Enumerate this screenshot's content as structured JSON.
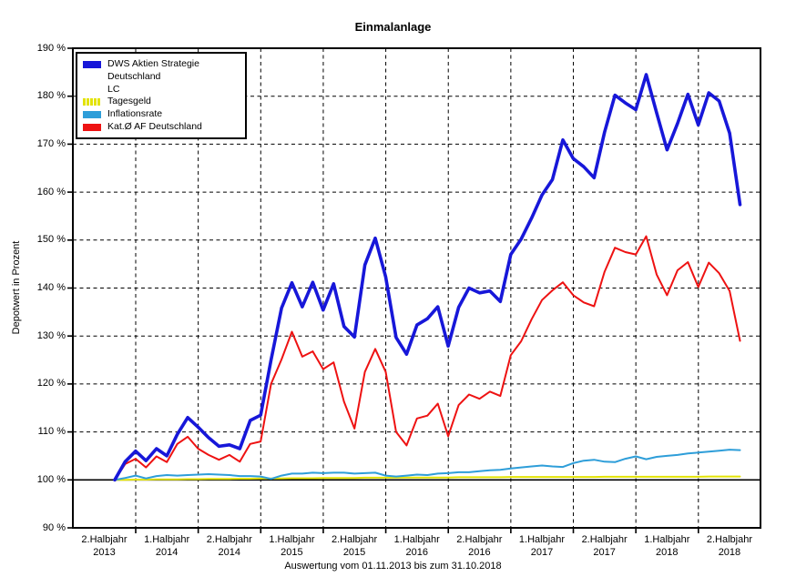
{
  "chart_data": {
    "type": "line",
    "title": "Einmalanlage",
    "ylabel": "Depotwert in Prozent",
    "footer": "Auswertung vom 01.11.2013 bis zum 31.10.2018",
    "ylim": [
      90,
      190
    ],
    "y_tick_step": 10,
    "grid": true,
    "baseline_value": 100,
    "legend_position": "top-left",
    "y_tick_labels": [
      "90 %",
      "100 %",
      "110 %",
      "120 %",
      "130 %",
      "140 %",
      "150 %",
      "160 %",
      "170 %",
      "180 %",
      "190 %"
    ],
    "x_tick_labels": [
      {
        "line1": "2.Halbjahr",
        "line2": "2013"
      },
      {
        "line1": "1.Halbjahr",
        "line2": "2014"
      },
      {
        "line1": "2.Halbjahr",
        "line2": "2014"
      },
      {
        "line1": "1.Halbjahr",
        "line2": "2015"
      },
      {
        "line1": "2.Halbjahr",
        "line2": "2015"
      },
      {
        "line1": "1.Halbjahr",
        "line2": "2016"
      },
      {
        "line1": "2.Halbjahr",
        "line2": "2016"
      },
      {
        "line1": "1.Halbjahr",
        "line2": "2017"
      },
      {
        "line1": "2.Halbjahr",
        "line2": "2017"
      },
      {
        "line1": "1.Halbjahr",
        "line2": "2018"
      },
      {
        "line1": "2.Halbjahr",
        "line2": "2018"
      }
    ],
    "x_unit": "month",
    "x_range_months": 60,
    "draw_order": [
      1,
      2,
      3,
      0
    ],
    "series": [
      {
        "name": "DWS Aktien Strategie Deutschland LC",
        "legend_lines": [
          "DWS Aktien Strategie Deutschland",
          "LC"
        ],
        "color": "#1717d9",
        "width": 3.6,
        "values": [
          100,
          103.8,
          106.0,
          104.0,
          106.5,
          105.0,
          109.5,
          113.0,
          111.0,
          108.8,
          107.0,
          107.3,
          106.5,
          112.4,
          113.5,
          125.0,
          135.8,
          141.1,
          136.1,
          141.2,
          135.4,
          140.9,
          132.0,
          129.8,
          144.8,
          150.4,
          142.3,
          129.7,
          126.2,
          132.3,
          133.6,
          136.1,
          127.9,
          136.0,
          140.0,
          139.0,
          139.4,
          137.2,
          147.0,
          150.2,
          154.6,
          159.4,
          162.6,
          170.9,
          167.0,
          165.3,
          163.0,
          172.5,
          180.2,
          178.6,
          177.2,
          184.5,
          176.5,
          168.8,
          174.3,
          180.4,
          174.0,
          180.7,
          179.0,
          172.3,
          157.4
        ]
      },
      {
        "name": "Tagesgeld",
        "legend_lines": [
          "Tagesgeld"
        ],
        "color": "#e3e305",
        "width": 2,
        "values": [
          100,
          100.0,
          100.05,
          100.05,
          100.1,
          100.1,
          100.1,
          100.15,
          100.15,
          100.2,
          100.2,
          100.2,
          100.25,
          100.25,
          100.3,
          100.3,
          100.3,
          100.35,
          100.35,
          100.35,
          100.4,
          100.4,
          100.4,
          100.4,
          100.45,
          100.45,
          100.45,
          100.45,
          100.5,
          100.5,
          100.5,
          100.5,
          100.5,
          100.55,
          100.55,
          100.55,
          100.55,
          100.55,
          100.6,
          100.6,
          100.6,
          100.6,
          100.6,
          100.6,
          100.6,
          100.6,
          100.6,
          100.65,
          100.65,
          100.65,
          100.65,
          100.65,
          100.65,
          100.65,
          100.65,
          100.65,
          100.65,
          100.7,
          100.7,
          100.7,
          100.7
        ]
      },
      {
        "name": "Inflationsrate",
        "legend_lines": [
          "Inflationsrate"
        ],
        "color": "#2e9ed9",
        "width": 2,
        "values": [
          100,
          100.4,
          100.9,
          100.3,
          100.8,
          101.0,
          100.9,
          101.0,
          101.1,
          101.2,
          101.1,
          101.0,
          100.8,
          100.8,
          100.7,
          100.2,
          100.9,
          101.3,
          101.3,
          101.5,
          101.4,
          101.5,
          101.5,
          101.3,
          101.4,
          101.5,
          100.9,
          100.7,
          100.9,
          101.1,
          101.0,
          101.3,
          101.4,
          101.6,
          101.6,
          101.8,
          102.0,
          102.1,
          102.4,
          102.6,
          102.8,
          103.0,
          102.8,
          102.7,
          103.5,
          104.0,
          104.2,
          103.8,
          103.7,
          104.4,
          104.9,
          104.3,
          104.8,
          105.0,
          105.2,
          105.5,
          105.7,
          105.9,
          106.1,
          106.3,
          106.2
        ]
      },
      {
        "name": "Kat.Ø AF Deutschland",
        "legend_lines": [
          "Kat.Ø AF Deutschland"
        ],
        "color": "#ee1212",
        "width": 2,
        "values": [
          100,
          103.3,
          104.4,
          102.6,
          104.9,
          103.7,
          107.5,
          109.0,
          106.5,
          105.2,
          104.2,
          105.2,
          103.8,
          107.5,
          108.0,
          120.0,
          125.1,
          130.9,
          125.7,
          126.8,
          123.1,
          124.5,
          116.3,
          110.7,
          122.5,
          127.3,
          122.5,
          110.0,
          107.2,
          112.8,
          113.4,
          115.9,
          109.1,
          115.6,
          117.8,
          116.9,
          118.4,
          117.5,
          126.0,
          128.9,
          133.5,
          137.5,
          139.5,
          141.2,
          138.5,
          137.0,
          136.2,
          143.4,
          148.4,
          147.5,
          147.0,
          150.8,
          142.8,
          138.5,
          143.7,
          145.4,
          140.2,
          145.3,
          143.1,
          139.4,
          129.0
        ]
      }
    ]
  }
}
